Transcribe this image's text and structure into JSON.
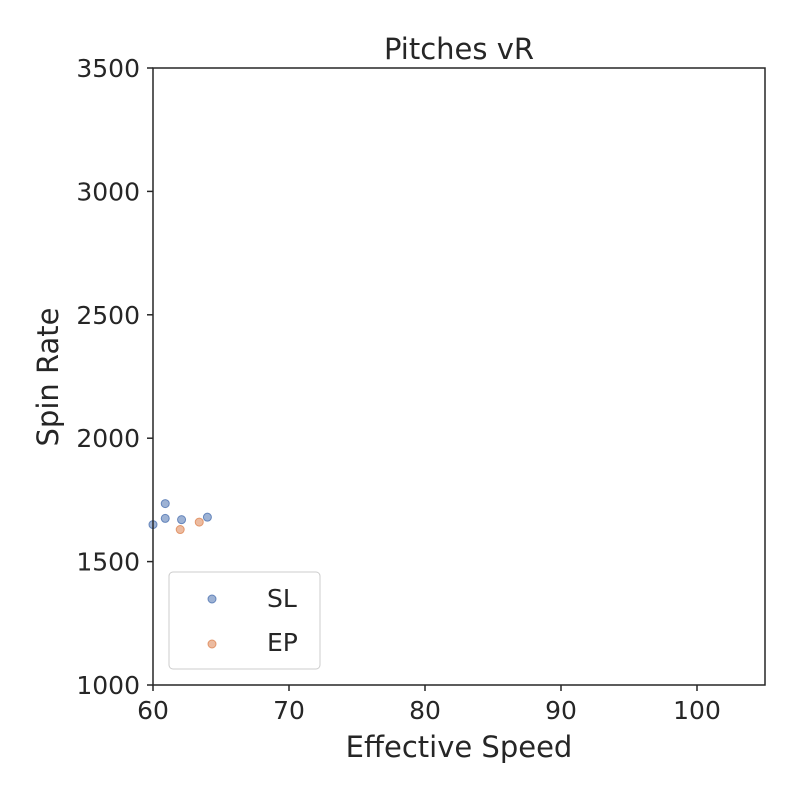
{
  "chart_data": {
    "type": "scatter",
    "title": "Pitches vR",
    "xlabel": "Effective Speed",
    "ylabel": "Spin Rate",
    "xlim": [
      60,
      105
    ],
    "ylim": [
      1000,
      3500
    ],
    "xticks": [
      "60",
      "70",
      "80",
      "90",
      "100"
    ],
    "yticks": [
      "1000",
      "1500",
      "2000",
      "2500",
      "3000",
      "3500"
    ],
    "grid": false,
    "legend_position": "lower-left",
    "series": [
      {
        "name": "SL",
        "color": "#4c72b0",
        "points": [
          {
            "x": 60.0,
            "y": 1650
          },
          {
            "x": 60.9,
            "y": 1735
          },
          {
            "x": 60.9,
            "y": 1675
          },
          {
            "x": 62.1,
            "y": 1670
          },
          {
            "x": 64.0,
            "y": 1680
          }
        ]
      },
      {
        "name": "EP",
        "color": "#dd8452",
        "points": [
          {
            "x": 62.0,
            "y": 1630
          },
          {
            "x": 63.4,
            "y": 1660
          }
        ]
      }
    ]
  }
}
